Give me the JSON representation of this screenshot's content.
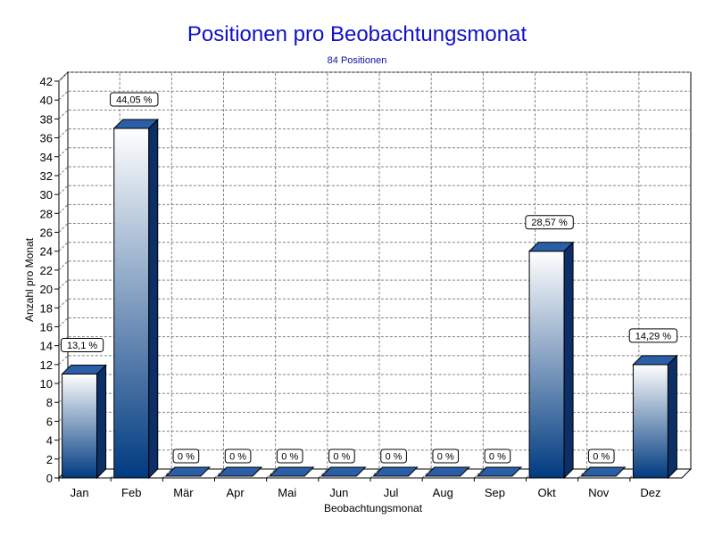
{
  "chart_data": {
    "type": "bar",
    "title": "Positionen pro Beobachtungsmonat",
    "subtitle": "84 Positionen",
    "xlabel": "Beobachtungsmonat",
    "ylabel": "Anzahl pro Monat",
    "ylim": [
      0,
      42
    ],
    "ytick_step": 2,
    "grid": true,
    "categories": [
      "Jan",
      "Feb",
      "Mär",
      "Apr",
      "Mai",
      "Jun",
      "Jul",
      "Aug",
      "Sep",
      "Okt",
      "Nov",
      "Dez"
    ],
    "values": [
      11,
      37,
      0,
      0,
      0,
      0,
      0,
      0,
      0,
      24,
      0,
      12
    ],
    "data_labels": [
      "13,1 %",
      "44,05 %",
      "0 %",
      "0 %",
      "0 %",
      "0 %",
      "0 %",
      "0 %",
      "0 %",
      "28,57 %",
      "0 %",
      "14,29 %"
    ],
    "colors": {
      "bar_top": "#ffffff",
      "bar_bottom": "#003a80",
      "bar_cap": "#2a5fa8",
      "bar_side": "#0b2f66",
      "grid": "#808080",
      "title": "#1010c8"
    }
  }
}
